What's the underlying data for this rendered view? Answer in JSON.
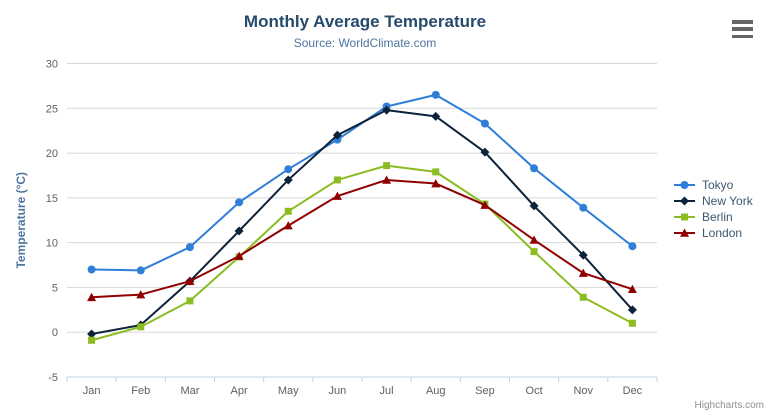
{
  "header": {
    "title": "Monthly Average Temperature",
    "subtitle": "Source: WorldClimate.com"
  },
  "credits": "Highcharts.com",
  "chart_data": {
    "type": "line",
    "title": "Monthly Average Temperature",
    "subtitle": "Source: WorldClimate.com",
    "xlabel": "",
    "ylabel": "Temperature (°C)",
    "categories": [
      "Jan",
      "Feb",
      "Mar",
      "Apr",
      "May",
      "Jun",
      "Jul",
      "Aug",
      "Sep",
      "Oct",
      "Nov",
      "Dec"
    ],
    "series": [
      {
        "name": "Tokyo",
        "color": "#2f7ed8",
        "marker": "circle",
        "values": [
          7.0,
          6.9,
          9.5,
          14.5,
          18.2,
          21.5,
          25.2,
          26.5,
          23.3,
          18.3,
          13.9,
          9.6
        ]
      },
      {
        "name": "New York",
        "color": "#0d233a",
        "marker": "diamond",
        "values": [
          -0.2,
          0.8,
          5.7,
          11.3,
          17.0,
          22.0,
          24.8,
          24.1,
          20.1,
          14.1,
          8.6,
          2.5
        ]
      },
      {
        "name": "Berlin",
        "color": "#8bbc21",
        "marker": "square",
        "values": [
          -0.9,
          0.6,
          3.5,
          8.4,
          13.5,
          17.0,
          18.6,
          17.9,
          14.3,
          9.0,
          3.9,
          1.0
        ]
      },
      {
        "name": "London",
        "color": "#910000",
        "marker": "triangle",
        "values": [
          3.9,
          4.2,
          5.7,
          8.5,
          11.9,
          15.2,
          17.0,
          16.6,
          14.2,
          10.3,
          6.6,
          4.8
        ]
      }
    ],
    "ylim": [
      -5,
      30
    ],
    "yticks": [
      -5,
      0,
      5,
      10,
      15,
      20,
      25,
      30
    ],
    "grid": true,
    "legend_position": "right",
    "colors": {
      "title": "#274b6d",
      "subtitle": "#4d759e",
      "axis_title": "#4d759e",
      "tick_label": "#606060",
      "grid_line": "#d8d8d8",
      "axis_line": "#c0d0e0",
      "legend_text": "#3e576f",
      "credits": "#909090",
      "menu_icon": "#666666"
    }
  }
}
